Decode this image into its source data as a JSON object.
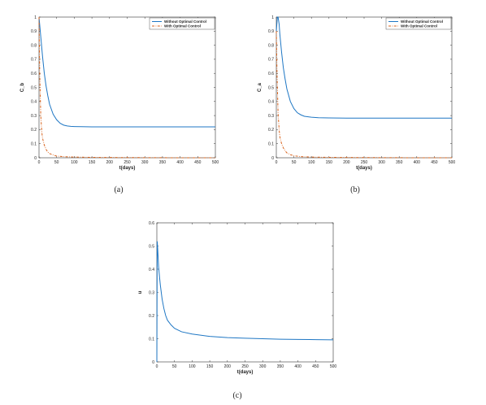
{
  "chart_data": [
    {
      "type": "line",
      "caption": "(a)",
      "xlabel": "t(days)",
      "ylabel": "C_b",
      "xlim": [
        0,
        500
      ],
      "ylim": [
        0,
        1
      ],
      "xticks": [
        0,
        50,
        100,
        150,
        200,
        250,
        300,
        350,
        400,
        450,
        500
      ],
      "yticks": [
        0,
        0.1,
        0.2,
        0.3,
        0.4,
        0.5,
        0.6,
        0.7,
        0.8,
        0.9,
        1
      ],
      "legend": "top-right",
      "series": [
        {
          "name": "Without Optimal Control",
          "color": "#1f77c4",
          "dash": "solid",
          "x": [
            0,
            5,
            10,
            15,
            20,
            25,
            30,
            40,
            50,
            60,
            70,
            80,
            90,
            100,
            120,
            150,
            200,
            300,
            400,
            500
          ],
          "y": [
            1.0,
            0.86,
            0.72,
            0.6,
            0.51,
            0.44,
            0.38,
            0.31,
            0.27,
            0.245,
            0.232,
            0.226,
            0.223,
            0.222,
            0.221,
            0.22,
            0.22,
            0.22,
            0.22,
            0.22
          ]
        },
        {
          "name": "With Optimal Control",
          "color": "#d9641e",
          "dash": "dashdot",
          "x": [
            0,
            2,
            5,
            8,
            10,
            15,
            20,
            25,
            30,
            40,
            50,
            70,
            100,
            150,
            200,
            300,
            400,
            500
          ],
          "y": [
            1.0,
            0.6,
            0.3,
            0.18,
            0.14,
            0.09,
            0.06,
            0.04,
            0.03,
            0.02,
            0.012,
            0.008,
            0.005,
            0.003,
            0.002,
            0.001,
            0.0,
            0.0
          ]
        }
      ]
    },
    {
      "type": "line",
      "caption": "(b)",
      "xlabel": "t(days)",
      "ylabel": "C_a",
      "xlim": [
        0,
        500
      ],
      "ylim": [
        0,
        1
      ],
      "xticks": [
        0,
        50,
        100,
        150,
        200,
        250,
        300,
        350,
        400,
        450,
        500
      ],
      "yticks": [
        0,
        0.1,
        0.2,
        0.3,
        0.4,
        0.5,
        0.6,
        0.7,
        0.8,
        0.9,
        1
      ],
      "legend": "top-right",
      "series": [
        {
          "name": "Without Optimal Control",
          "color": "#1f77c4",
          "dash": "solid",
          "x": [
            0,
            3,
            5,
            8,
            10,
            15,
            20,
            25,
            30,
            40,
            50,
            60,
            70,
            80,
            100,
            120,
            150,
            200,
            300,
            400,
            500
          ],
          "y": [
            0.9,
            1.0,
            1.0,
            0.95,
            0.88,
            0.75,
            0.64,
            0.56,
            0.49,
            0.4,
            0.35,
            0.32,
            0.305,
            0.295,
            0.288,
            0.285,
            0.283,
            0.282,
            0.282,
            0.282,
            0.282
          ]
        },
        {
          "name": "With Optimal Control",
          "color": "#d9641e",
          "dash": "dashdot",
          "x": [
            0,
            2,
            5,
            8,
            10,
            15,
            20,
            25,
            30,
            40,
            50,
            70,
            100,
            150,
            200,
            300,
            400,
            500
          ],
          "y": [
            0.9,
            0.6,
            0.32,
            0.2,
            0.15,
            0.1,
            0.07,
            0.05,
            0.035,
            0.022,
            0.014,
            0.008,
            0.005,
            0.003,
            0.002,
            0.001,
            0.0,
            0.0
          ]
        }
      ]
    },
    {
      "type": "line",
      "caption": "(c)",
      "xlabel": "t(days)",
      "ylabel": "u",
      "xlim": [
        0,
        500
      ],
      "ylim": [
        0,
        0.6
      ],
      "xticks": [
        0,
        50,
        100,
        150,
        200,
        250,
        300,
        350,
        400,
        450,
        500
      ],
      "yticks": [
        0,
        0.1,
        0.2,
        0.3,
        0.4,
        0.5,
        0.6
      ],
      "legend": "none",
      "series": [
        {
          "name": "",
          "color": "#1f77c4",
          "dash": "solid",
          "x": [
            0,
            1,
            2,
            3,
            4,
            5,
            8,
            10,
            15,
            20,
            25,
            30,
            40,
            50,
            70,
            100,
            150,
            200,
            250,
            300,
            350,
            400,
            450,
            500
          ],
          "y": [
            0.0,
            0.52,
            0.5,
            0.47,
            0.44,
            0.41,
            0.36,
            0.33,
            0.27,
            0.23,
            0.2,
            0.18,
            0.16,
            0.145,
            0.13,
            0.12,
            0.11,
            0.105,
            0.102,
            0.1,
            0.098,
            0.097,
            0.096,
            0.095
          ]
        }
      ]
    }
  ]
}
